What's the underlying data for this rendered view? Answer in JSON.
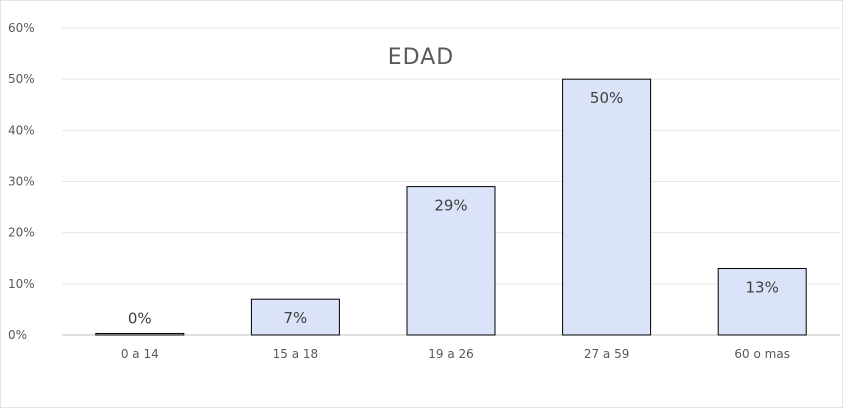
{
  "chart_data": {
    "type": "bar",
    "title": "EDAD",
    "xlabel": "",
    "ylabel": "",
    "categories": [
      "0 a 14",
      "15 a 18",
      "19 a 26",
      "27 a 59",
      "60 o mas"
    ],
    "values": [
      0.3,
      7,
      29,
      50,
      13
    ],
    "data_labels": [
      "0%",
      "7%",
      "29%",
      "50%",
      "13%"
    ],
    "ylim": [
      0,
      60
    ],
    "yticks": [
      0,
      10,
      20,
      30,
      40,
      50,
      60
    ],
    "ytick_labels": [
      "0%",
      "10%",
      "20%",
      "30%",
      "40%",
      "50%",
      "60%"
    ],
    "grid": true,
    "legend": "none",
    "colors": {
      "bar_fill": "#dae3f8",
      "bar_stroke": "#000000",
      "grid": "#e6e6e6",
      "axis": "#bfbfbf",
      "text": "#595959"
    }
  }
}
